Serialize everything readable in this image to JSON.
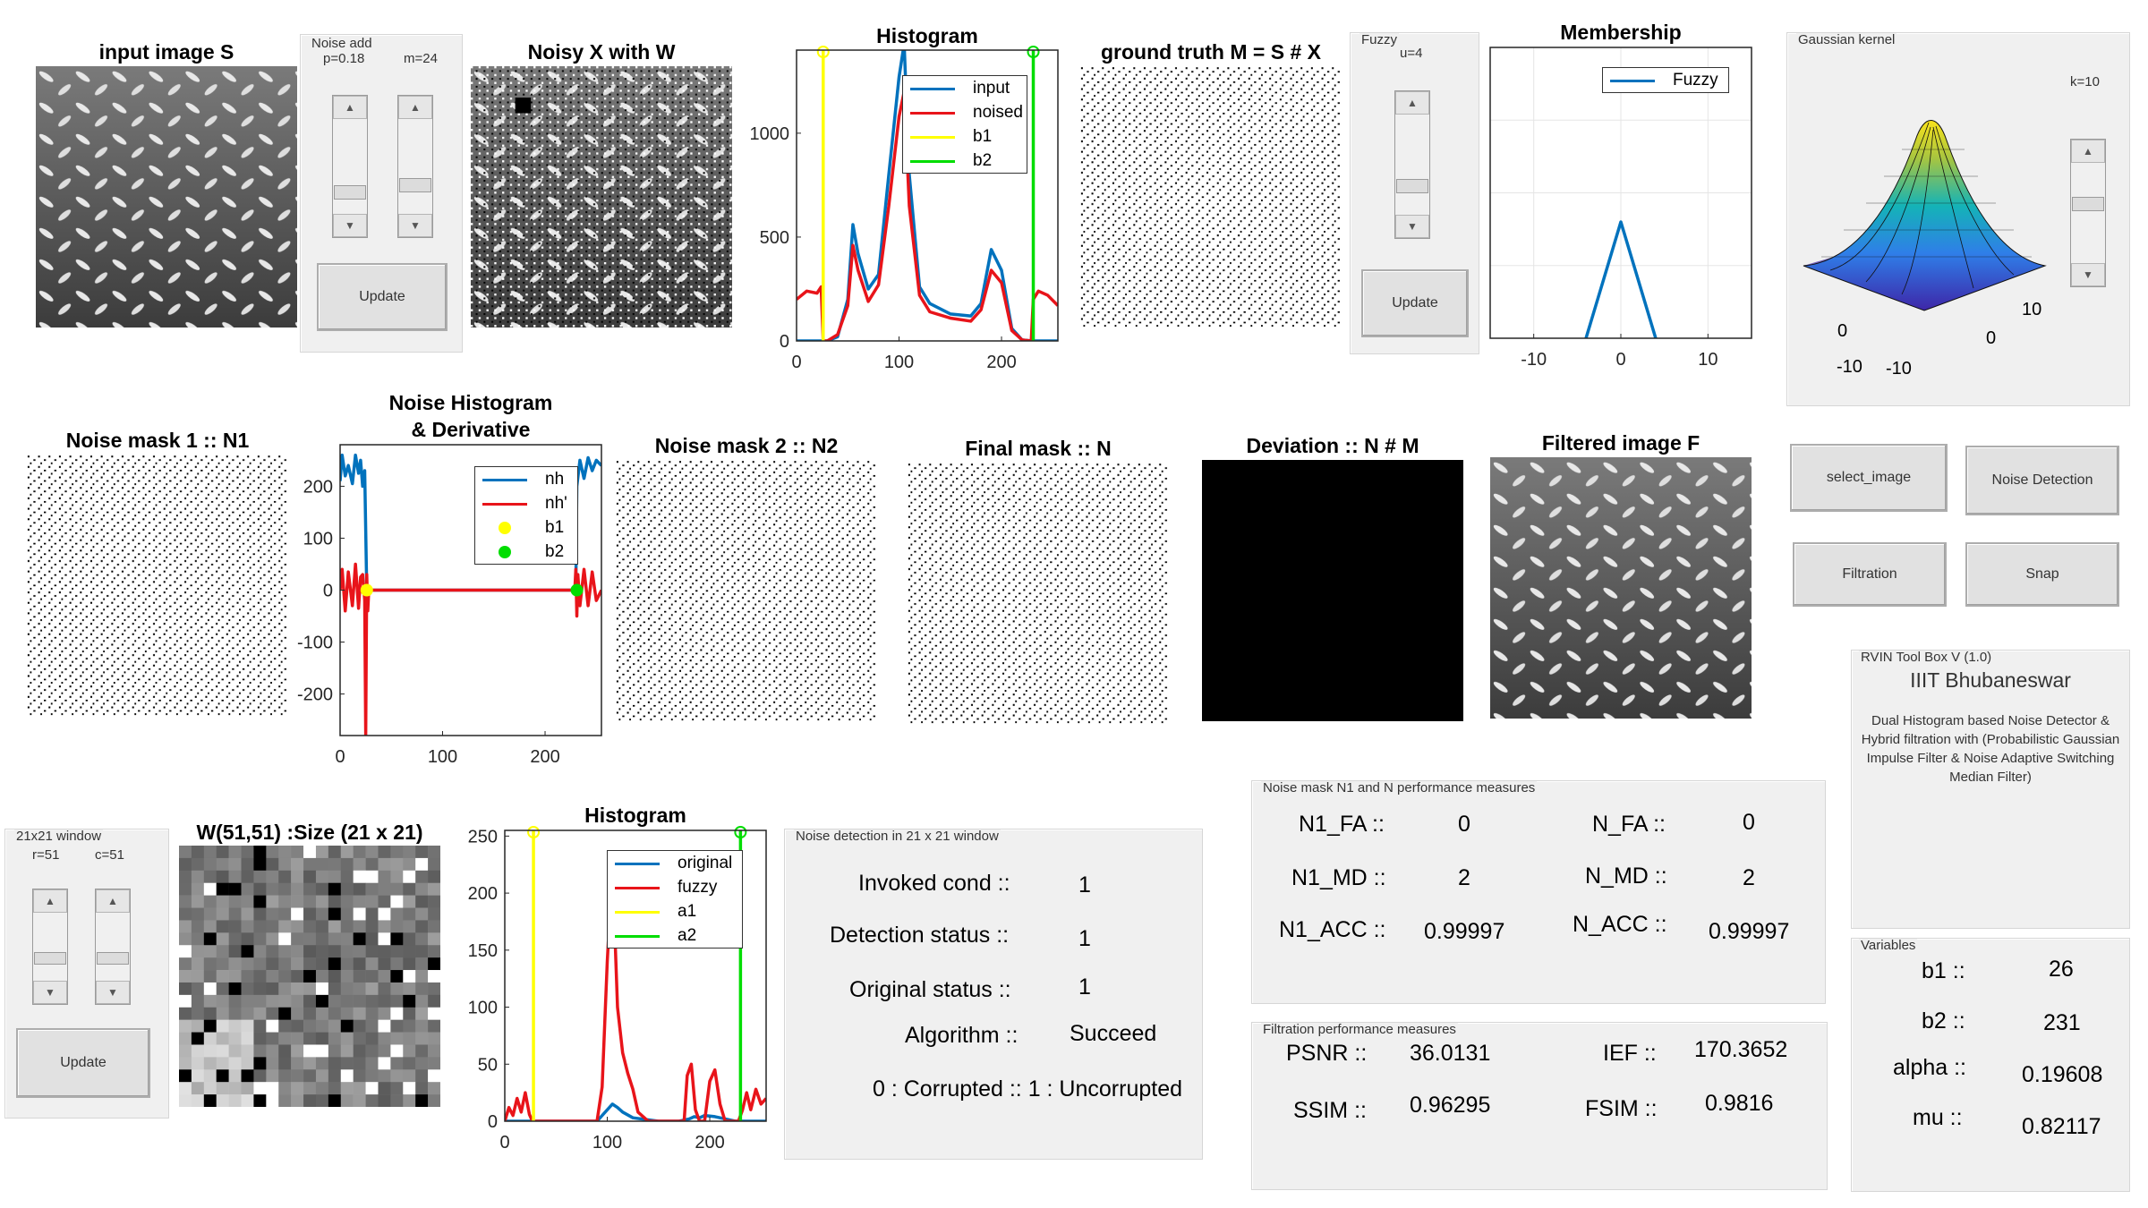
{
  "titles": {
    "input": "input image S",
    "noisy": "Noisy X with W",
    "hist1": "Histogram",
    "ground": "ground truth M = S # X",
    "membership": "Membership",
    "mask1": "Noise mask 1 :: N1",
    "noise_hist_l1": "Noise Histogram",
    "noise_hist_l2": "& Derivative",
    "mask2": "Noise mask 2 :: N2",
    "final_mask": "Final mask :: N",
    "deviation": "Deviation :: N # M",
    "filtered": "Filtered image F",
    "window_title": "W(51,51) :Size (21 x 21)",
    "hist3": "Histogram"
  },
  "noise_add": {
    "legend": "Noise add",
    "p_label": "p=0.18",
    "m_label": "m=24",
    "p_value": 0.18,
    "m_value": 24,
    "update_label": "Update"
  },
  "fuzzy_panel": {
    "legend": "Fuzzy",
    "u_label": "u=4",
    "u_value": 4,
    "update_label": "Update"
  },
  "gaussian_panel": {
    "legend": "Gaussian kernel",
    "k_label": "k=10",
    "k_value": 10,
    "x_ticks": [
      "-10",
      "0",
      "10"
    ],
    "y_ticks": [
      "-10",
      "0",
      "10"
    ]
  },
  "window_panel": {
    "legend": "21x21 window",
    "r_label": "r=51",
    "c_label": "c=51",
    "update_label": "Update"
  },
  "buttons": {
    "select_image": "select_image",
    "noise_detection": "Noise Detection",
    "filtration": "Filtration",
    "snap": "Snap"
  },
  "toolbox": {
    "legend": "RVIN Tool Box V (1.0)",
    "institute": "IIIT Bhubaneswar",
    "description": "Dual Histogram based Noise Detector & Hybrid filtration with (Probabilistic Gaussian Impulse Filter & Noise Adaptive Switching Median Filter)"
  },
  "noise_detection_panel": {
    "legend": "Noise detection in 21 x 21 window",
    "rows": [
      {
        "label": "Invoked cond ::",
        "value": "1"
      },
      {
        "label": "Detection status ::",
        "value": "1"
      },
      {
        "label": "Original status ::",
        "value": "1"
      },
      {
        "label": "Algorithm ::",
        "value": "Succeed"
      }
    ],
    "footnote": "0 : Corrupted :: 1 : Uncorrupted"
  },
  "mask_measures": {
    "legend": "Noise mask N1 and N performance measures",
    "rows": [
      {
        "l1": "N1_FA ::",
        "v1": "0",
        "l2": "N_FA ::",
        "v2": "0"
      },
      {
        "l1": "N1_MD ::",
        "v1": "2",
        "l2": "N_MD ::",
        "v2": "2"
      },
      {
        "l1": "N1_ACC ::",
        "v1": "0.99997",
        "l2": "N_ACC ::",
        "v2": "0.99997"
      }
    ]
  },
  "filtration_measures": {
    "legend": "Filtration performance measures",
    "rows": [
      {
        "l1": "PSNR ::",
        "v1": "36.0131",
        "l2": "IEF ::",
        "v2": "170.3652"
      },
      {
        "l1": "SSIM ::",
        "v1": "0.96295",
        "l2": "FSIM ::",
        "v2": "0.9816"
      }
    ]
  },
  "variables": {
    "legend": "Variables",
    "rows": [
      {
        "label": "b1 ::",
        "value": "26"
      },
      {
        "label": "b2 ::",
        "value": "231"
      },
      {
        "label": "alpha ::",
        "value": "0.19608"
      },
      {
        "label": "mu ::",
        "value": "0.82117"
      }
    ]
  },
  "colors": {
    "blue": "#0072bd",
    "red": "#e8141a",
    "yellow": "#ffff00",
    "green": "#00dd00",
    "surface_peak": "#f9e21b",
    "surface_base": "#3e26a8"
  },
  "chart_data": [
    {
      "id": "hist_input_noised",
      "type": "line",
      "title": "Histogram",
      "xlim": [
        0,
        255
      ],
      "ylim": [
        0,
        1400
      ],
      "x_ticks": [
        0,
        100,
        200
      ],
      "y_ticks": [
        0,
        500,
        1000
      ],
      "legend_position": "top-right",
      "series": [
        {
          "name": "input",
          "color": "#0072bd",
          "x": [
            0,
            25,
            26,
            30,
            40,
            50,
            55,
            60,
            70,
            80,
            90,
            100,
            105,
            110,
            120,
            130,
            150,
            170,
            180,
            190,
            200,
            210,
            220,
            230,
            231,
            240,
            255
          ],
          "y": [
            0,
            0,
            0,
            0,
            20,
            200,
            560,
            420,
            250,
            320,
            800,
            1270,
            1430,
            800,
            260,
            180,
            130,
            120,
            180,
            440,
            340,
            60,
            5,
            0,
            0,
            0,
            0
          ]
        },
        {
          "name": "noised",
          "color": "#e8141a",
          "x": [
            0,
            10,
            20,
            24,
            26,
            30,
            40,
            50,
            55,
            60,
            70,
            80,
            90,
            100,
            105,
            110,
            120,
            130,
            150,
            170,
            180,
            190,
            200,
            210,
            220,
            229,
            231,
            236,
            245,
            255
          ],
          "y": [
            200,
            240,
            230,
            260,
            0,
            0,
            30,
            170,
            460,
            340,
            190,
            270,
            650,
            1080,
            1200,
            650,
            220,
            140,
            110,
            95,
            150,
            340,
            280,
            50,
            5,
            0,
            200,
            240,
            220,
            170
          ]
        },
        {
          "name": "b1",
          "color": "#ffff00",
          "x": [
            26,
            26
          ],
          "y": [
            0,
            1400
          ]
        },
        {
          "name": "b2",
          "color": "#00dd00",
          "x": [
            231,
            231
          ],
          "y": [
            0,
            1400
          ]
        }
      ]
    },
    {
      "id": "membership",
      "type": "line",
      "title": "Membership",
      "xlim": [
        -15,
        15
      ],
      "ylim": [
        0,
        1
      ],
      "x_ticks": [
        -10,
        0,
        10
      ],
      "legend_position": "top-right",
      "series": [
        {
          "name": "Fuzzy",
          "color": "#0072bd",
          "x": [
            -4,
            0,
            4
          ],
          "y": [
            0,
            0.4,
            0
          ]
        }
      ]
    },
    {
      "id": "noise_hist_derivative",
      "type": "line",
      "title": "Noise Histogram & Derivative",
      "xlim": [
        0,
        255
      ],
      "ylim": [
        -280,
        280
      ],
      "x_ticks": [
        0,
        100,
        200
      ],
      "y_ticks": [
        -200,
        -100,
        0,
        100,
        200
      ],
      "legend_position": "top-right",
      "series": [
        {
          "name": "nh",
          "color": "#0072bd",
          "x": [
            0,
            2,
            5,
            8,
            12,
            15,
            18,
            20,
            22,
            24,
            26,
            30,
            60,
            100,
            150,
            200,
            230,
            231,
            234,
            238,
            242,
            246,
            250,
            255
          ],
          "y": [
            210,
            260,
            220,
            240,
            205,
            260,
            225,
            250,
            200,
            230,
            0,
            0,
            0,
            0,
            0,
            0,
            0,
            200,
            250,
            215,
            255,
            230,
            250,
            240
          ]
        },
        {
          "name": "nh'",
          "color": "#e8141a",
          "x": [
            0,
            2,
            5,
            8,
            12,
            15,
            18,
            20,
            22,
            24,
            25,
            26,
            27,
            28,
            30,
            60,
            100,
            150,
            200,
            229,
            230,
            231,
            232,
            234,
            238,
            242,
            246,
            250,
            255
          ],
          "y": [
            0,
            40,
            -40,
            35,
            -30,
            50,
            -35,
            25,
            30,
            -20,
            -280,
            30,
            -40,
            0,
            0,
            0,
            0,
            0,
            0,
            0,
            40,
            -50,
            30,
            -30,
            40,
            -30,
            35,
            -20,
            0
          ]
        },
        {
          "name": "b1",
          "color": "#ffff00",
          "marker": "circle",
          "x": [
            26
          ],
          "y": [
            0
          ]
        },
        {
          "name": "b2",
          "color": "#00dd00",
          "marker": "circle",
          "x": [
            231
          ],
          "y": [
            0
          ]
        }
      ]
    },
    {
      "id": "hist_window",
      "type": "line",
      "title": "Histogram",
      "xlim": [
        0,
        255
      ],
      "ylim": [
        0,
        255
      ],
      "x_ticks": [
        0,
        100,
        200
      ],
      "y_ticks": [
        0,
        50,
        100,
        150,
        200,
        250
      ],
      "legend_position": "top-right",
      "series": [
        {
          "name": "original",
          "color": "#0072bd",
          "x": [
            0,
            10,
            20,
            30,
            60,
            90,
            95,
            100,
            105,
            110,
            115,
            125,
            150,
            170,
            180,
            185,
            190,
            195,
            205,
            215,
            225,
            230,
            240,
            255
          ],
          "y": [
            0,
            0,
            0,
            0,
            0,
            0,
            5,
            10,
            15,
            12,
            8,
            3,
            0,
            0,
            2,
            4,
            3,
            5,
            4,
            2,
            0,
            0,
            0,
            0
          ]
        },
        {
          "name": "fuzzy",
          "color": "#e8141a",
          "x": [
            0,
            4,
            8,
            12,
            16,
            20,
            24,
            27,
            30,
            60,
            90,
            95,
            100,
            105,
            110,
            115,
            120,
            125,
            130,
            140,
            160,
            175,
            178,
            182,
            186,
            190,
            195,
            200,
            205,
            210,
            215,
            220,
            228,
            232,
            236,
            240,
            245,
            250,
            255
          ],
          "y": [
            0,
            12,
            5,
            20,
            8,
            25,
            6,
            0,
            0,
            0,
            0,
            30,
            140,
            225,
            100,
            60,
            42,
            28,
            8,
            0,
            0,
            0,
            40,
            50,
            10,
            0,
            0,
            35,
            45,
            15,
            0,
            0,
            0,
            10,
            25,
            10,
            28,
            15,
            20
          ]
        },
        {
          "name": "a1",
          "color": "#ffff00",
          "x": [
            28,
            28
          ],
          "y": [
            0,
            255
          ]
        },
        {
          "name": "a2",
          "color": "#00dd00",
          "x": [
            230,
            230
          ],
          "y": [
            0,
            255
          ]
        }
      ]
    }
  ]
}
